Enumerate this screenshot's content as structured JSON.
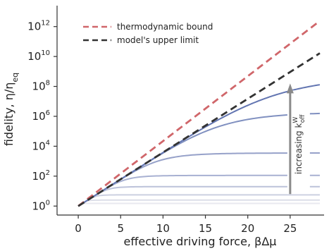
{
  "chart_data": {
    "type": "line",
    "xlabel": "effective driving force, βΔμ",
    "ylabel_main": "fidelity, η/η",
    "ylabel_sub": "eq",
    "xlim": [
      -2.5,
      29
    ],
    "ylim_log10": [
      -0.6,
      13.4
    ],
    "y_scale": "log",
    "grid": false,
    "legend_position": "top-left",
    "x_ticks": [
      0,
      5,
      10,
      15,
      20,
      25
    ],
    "y_ticks": [
      {
        "base": "10",
        "exp": "0",
        "value_log10": 0
      },
      {
        "base": "10",
        "exp": "2",
        "value_log10": 2
      },
      {
        "base": "10",
        "exp": "4",
        "value_log10": 4
      },
      {
        "base": "10",
        "exp": "6",
        "value_log10": 6
      },
      {
        "base": "10",
        "exp": "8",
        "value_log10": 8
      },
      {
        "base": "10",
        "exp": "10",
        "value_log10": 10
      },
      {
        "base": "10",
        "exp": "12",
        "value_log10": 12
      }
    ],
    "reference_lines": [
      {
        "name": "thermodynamic bound",
        "color": "#d0666a",
        "style": "dashed",
        "slope_log10_per_unit": 0.4343
      },
      {
        "name": "model's upper limit",
        "color": "#333333",
        "style": "dashed",
        "slope_log10_per_unit": 0.3586
      }
    ],
    "series": [
      {
        "plateau_log10": 0.18,
        "color": "#e8e9ef"
      },
      {
        "plateau_log10": 0.4,
        "color": "#dcdee8"
      },
      {
        "plateau_log10": 0.75,
        "color": "#ccd0e1"
      },
      {
        "plateau_log10": 1.3,
        "color": "#bcc2da"
      },
      {
        "plateau_log10": 2.05,
        "color": "#a8b1d2"
      },
      {
        "plateau_log10": 3.55,
        "color": "#96a1c9"
      },
      {
        "plateau_log10": 6.3,
        "color": "#8090c0"
      },
      {
        "plateau_log10": 8.75,
        "color": "#6275b1"
      }
    ],
    "annotation": {
      "text_main": "increasing k",
      "text_sup": "W",
      "text_sub": "off",
      "x": 25,
      "y_start_log10": 0.8,
      "y_end_log10": 8.2
    }
  }
}
